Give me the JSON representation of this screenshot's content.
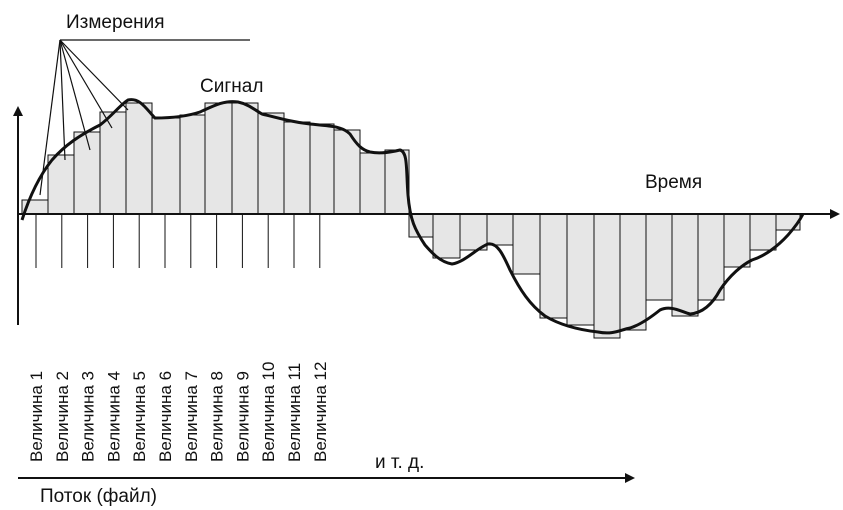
{
  "labels": {
    "measurements": "Измерения",
    "signal": "Сигнал",
    "time": "Время",
    "etc": "и т. д.",
    "stream": "Поток (файл)"
  },
  "sample_labels": [
    "Величина 1",
    "Величина 2",
    "Величина 3",
    "Величина 4",
    "Величина 5",
    "Величина 6",
    "Величина 7",
    "Величина 8",
    "Величина 9",
    "Величина 10",
    "Величина 11",
    "Величина 12"
  ],
  "colors": {
    "bar_fill": "#e6e6e6",
    "line": "#111111"
  }
}
